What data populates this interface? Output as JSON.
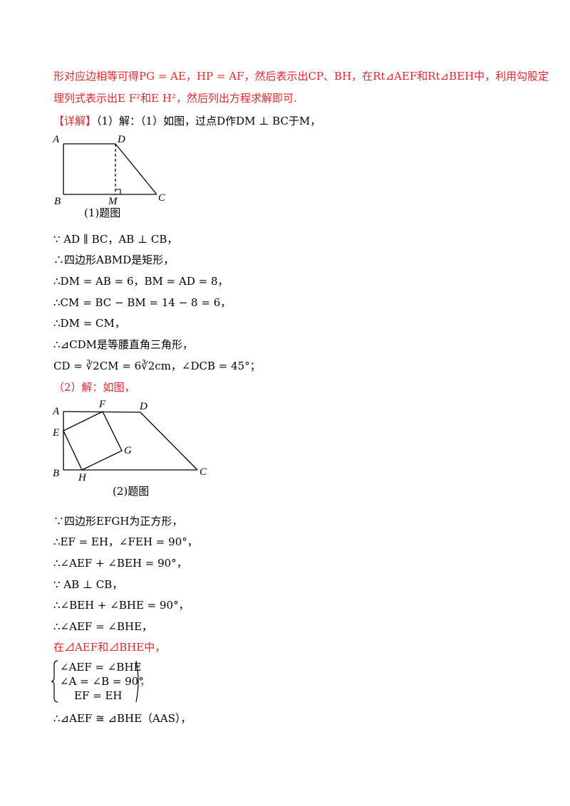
{
  "intro": {
    "line1": "形对应边相等可得PG = AE，HP = AF，然后表示出CP、BH，在Rt⊿AEF和Rt⊿BEH中，利用勾股定",
    "line2": "理列式表示出E F²和E H²，然后列出方程求解即可."
  },
  "detail": {
    "tag": "【详解】",
    "line": "（1）解：（1）如图，过点D作DM ⊥ BC于M，"
  },
  "figure1": {
    "caption": "(1)题图",
    "labels": {
      "A": "A",
      "B": "B",
      "C": "C",
      "D": "D",
      "M": "M"
    }
  },
  "part1": [
    "∵ AD ∥ BC，AB ⊥ CB，",
    "∴四边形ABMD是矩形，",
    "∴DM = AB = 6，BM = AD = 8，",
    "∴CM = BC − BM = 14 − 8 = 6，",
    "∴DM = CM，",
    "∴⊿CDM是等腰直角三角形，",
    "CD = ∛2CM = 6∛2cm，∠DCB = 45°；"
  ],
  "part2_head": "（2）解：如图，",
  "figure2": {
    "caption": "(2)题图",
    "labels": {
      "A": "A",
      "B": "B",
      "C": "C",
      "D": "D",
      "E": "E",
      "F": "F",
      "G": "G",
      "H": "H"
    }
  },
  "part2": [
    "∵四边形EFGH为正方形，",
    "∴EF = EH，∠FEH = 90°，",
    "∴∠AEF + ∠BEH = 90°，",
    "∵ AB ⊥ CB，",
    "∴∠BEH + ∠BHE = 90°，",
    "∴∠AEF = ∠BHE，",
    "在⊿AEF和⊿BHE中，"
  ],
  "system": {
    "rows": [
      "∠AEF = ∠BHE",
      "∠A = ∠B = 90°",
      "EF = EH"
    ],
    "tail": "，"
  },
  "conclusion": "∴⊿AEF ≅ ⊿BHE（AAS），"
}
